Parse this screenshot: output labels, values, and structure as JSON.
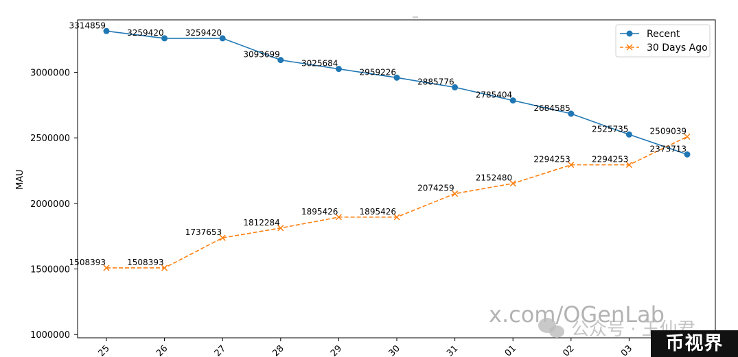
{
  "chart_data": {
    "type": "line",
    "ylabel": "MAU",
    "xlabel": "",
    "categories": [
      "25",
      "26",
      "27",
      "28",
      "29",
      "30",
      "31",
      "01",
      "02",
      "03",
      ""
    ],
    "ylim": [
      975000,
      3400000
    ],
    "yticks": [
      1000000,
      1500000,
      2000000,
      2500000,
      3000000
    ],
    "ytick_labels": [
      "1000000",
      "1500000",
      "2000000",
      "2500000",
      "3000000"
    ],
    "legend_position": "top-right",
    "grid": false,
    "series": [
      {
        "name": "Recent",
        "color": "#1f77b4",
        "style": "solid",
        "marker": "circle",
        "values": [
          3314859,
          3259420,
          3259420,
          3093699,
          3025684,
          2959226,
          2885776,
          2785404,
          2684585,
          2525735,
          2373713
        ],
        "labels": [
          "3314859",
          "3259420",
          "3259420",
          "3093699",
          "3025684",
          "2959226",
          "2885776",
          "2785404",
          "2684585",
          "2525735",
          "2373713"
        ]
      },
      {
        "name": "30 Days Ago",
        "color": "#ff7f0e",
        "style": "dashed",
        "marker": "x",
        "values": [
          1508393,
          1508393,
          1737653,
          1812284,
          1895426,
          1895426,
          2074259,
          2152480,
          2294253,
          2294253,
          2509039
        ],
        "labels": [
          "1508393",
          "1508393",
          "1737653",
          "1812284",
          "1895426",
          "1895426",
          "2074259",
          "2152480",
          "2294253",
          "2294253",
          "2509039"
        ]
      }
    ]
  },
  "watermark": {
    "url_text": "x.com/OGenLab",
    "wechat_text": "公众号 · 王仙君",
    "badge_text": "币视界"
  }
}
